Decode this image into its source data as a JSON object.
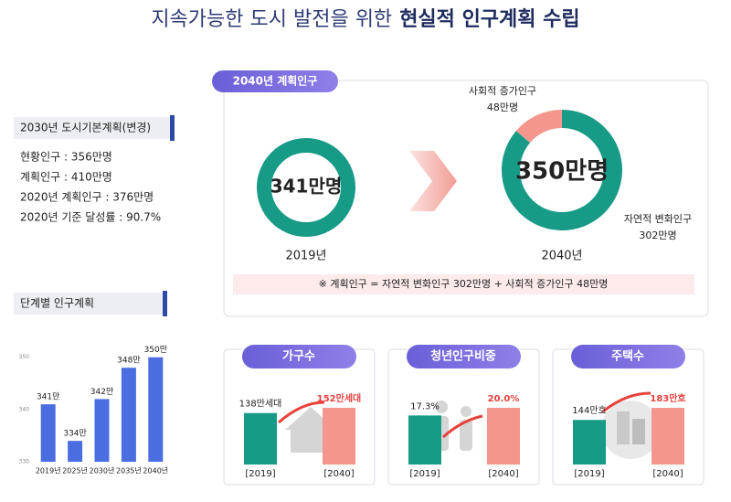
{
  "title": {
    "plain": "지속가능한 도시 발전을 위한",
    "emphasis": "현실적 인구계획 수립"
  },
  "plan_2030": {
    "heading": "2030년 도시기본계획(변경)",
    "lines": [
      "현황인구 : 356만명",
      "계획인구 : 410만명",
      "2020년 계획인구 : 376만명",
      "2020년 기준 달성률 : 90.7%"
    ]
  },
  "plan_2040": {
    "badge": "2040년 계획인구",
    "note": "※ 계획인구 = 자연적 변화인구 302만명 + 사회적 증가인구 48만명"
  },
  "chart_data": [
    {
      "type": "donut",
      "values": [
        341
      ],
      "value_labels": [
        "341만명"
      ],
      "caption": "2019년",
      "colors": [
        "#179a86"
      ]
    },
    {
      "type": "donut",
      "categories": [
        "사회적 증가인구",
        "자연적 변화인구"
      ],
      "values": [
        48,
        302
      ],
      "value_labels": [
        "48만명",
        "302만명"
      ],
      "center_label": "350만명",
      "caption": "2040년",
      "colors": [
        "#f4968e",
        "#179a86"
      ]
    },
    {
      "type": "bar",
      "title": "단계별 인구계획",
      "categories": [
        "2019년",
        "2025년",
        "2030년",
        "2035년",
        "2040년"
      ],
      "values": [
        341,
        334,
        342,
        348,
        350
      ],
      "value_labels": [
        "341만",
        "334만",
        "342만",
        "348만",
        "350만"
      ],
      "color": "#4a6ee0",
      "ylim": [
        330,
        351
      ],
      "yticks": [
        330,
        340,
        350
      ]
    },
    {
      "type": "bar",
      "title": "가구수",
      "categories": [
        "[2019]",
        "[2040]"
      ],
      "values": [
        138,
        152
      ],
      "value_labels": [
        "138만세대",
        "152만세대"
      ],
      "colors": [
        "#179a86",
        "#f4968e"
      ]
    },
    {
      "type": "bar",
      "title": "청년인구비중",
      "categories": [
        "[2019]",
        "[2040]"
      ],
      "values": [
        17.3,
        20.0
      ],
      "value_labels": [
        "17.3%",
        "20.0%"
      ],
      "colors": [
        "#179a86",
        "#f4968e"
      ]
    },
    {
      "type": "bar",
      "title": "주택수",
      "categories": [
        "[2019]",
        "[2040]"
      ],
      "values": [
        144,
        183
      ],
      "value_labels": [
        "144만호",
        "183만호"
      ],
      "colors": [
        "#179a86",
        "#f4968e"
      ]
    }
  ]
}
